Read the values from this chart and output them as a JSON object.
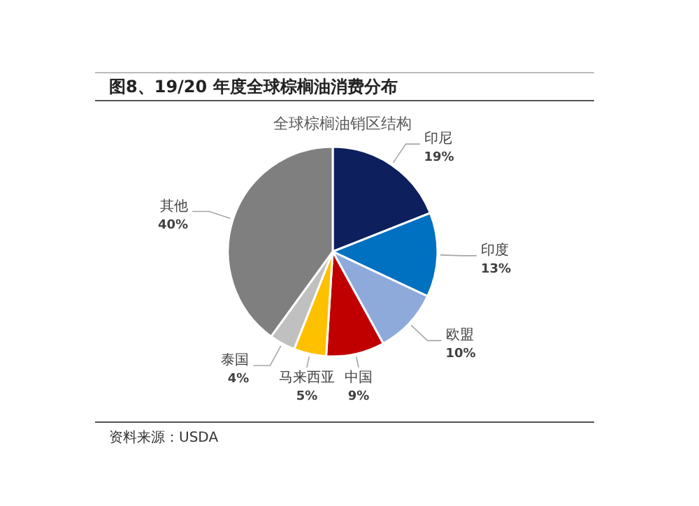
{
  "chart_data": {
    "type": "pie",
    "title": "图8、19/20 年度全球棕榈油消费分布",
    "subtitle": "全球棕榈油销区结构",
    "categories": [
      "印尼",
      "印度",
      "欧盟",
      "中国",
      "马来西亚",
      "泰国",
      "其他"
    ],
    "values": [
      19,
      13,
      10,
      9,
      5,
      4,
      40
    ],
    "colors": [
      "#0d1f5c",
      "#0070c0",
      "#8eaadb",
      "#c00000",
      "#ffc000",
      "#c0c0c0",
      "#7f7f7f"
    ],
    "value_labels": [
      "19%",
      "13%",
      "10%",
      "9%",
      "5%",
      "4%",
      "40%"
    ],
    "annotations": [
      "资料来源：USDA"
    ]
  }
}
